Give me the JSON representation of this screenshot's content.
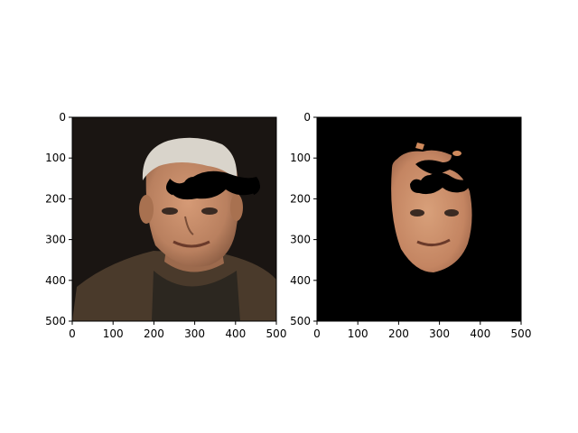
{
  "chart_data": [
    {
      "type": "image",
      "title": "",
      "xlabel": "",
      "ylabel": "",
      "xlim": [
        0,
        500
      ],
      "ylim": [
        500,
        0
      ],
      "xticks": [
        0,
        100,
        200,
        300,
        400,
        500
      ],
      "yticks": [
        0,
        100,
        200,
        300,
        400,
        500
      ],
      "image_content": "photo of an elderly man with a black moustache overlay placed across his forehead",
      "colors": {
        "background": "#1a1512",
        "jacket": "#4a3a2b",
        "skin": "#c89070",
        "hair": "#d9d4cb",
        "moustache": "#000000"
      }
    },
    {
      "type": "image",
      "title": "",
      "xlabel": "",
      "ylabel": "",
      "xlim": [
        0,
        500
      ],
      "ylim": [
        500,
        0
      ],
      "xticks": [
        0,
        100,
        200,
        300,
        400,
        500
      ],
      "yticks": [
        0,
        100,
        200,
        300,
        400,
        500
      ],
      "image_content": "segmented skin region of the face on black background with the moustache overlay",
      "colors": {
        "background": "#000000",
        "skin": "#c89070",
        "skin_hi": "#e4935b",
        "moustache": "#000000"
      }
    }
  ]
}
